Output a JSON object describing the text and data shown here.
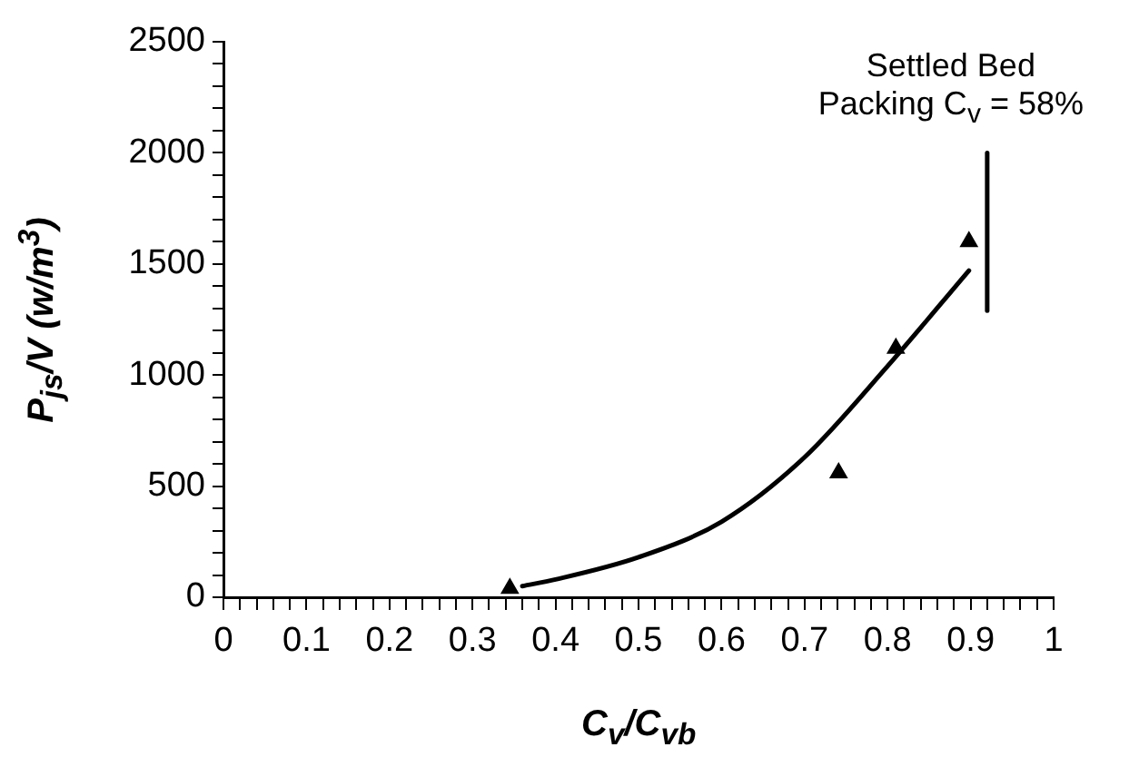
{
  "chart_data": {
    "type": "scatter",
    "xlabel": "C$_{v}$/C$_{vb}$",
    "ylabel": "P$_{js}$/V (w/m$^{3}$)",
    "xlim": [
      0,
      1
    ],
    "ylim": [
      0,
      2500
    ],
    "xticks": [
      0,
      {
        "value": 0.02,
        "label": null
      },
      {
        "value": 0.04,
        "label": null
      },
      {
        "value": 0.06,
        "label": null
      },
      {
        "value": 0.08,
        "label": null
      },
      {
        "value": 0.1,
        "label": "0.1"
      },
      {
        "value": 0.12,
        "label": null
      },
      {
        "value": 0.14,
        "label": null
      },
      {
        "value": 0.16,
        "label": null
      },
      {
        "value": 0.18,
        "label": null
      },
      {
        "value": 0.2,
        "label": "0.2"
      },
      {
        "value": 0.22,
        "label": null
      },
      {
        "value": 0.24,
        "label": null
      },
      {
        "value": 0.26,
        "label": null
      },
      {
        "value": 0.28,
        "label": null
      },
      {
        "value": 0.3,
        "label": "0.3"
      },
      {
        "value": 0.32,
        "label": null
      },
      {
        "value": 0.34,
        "label": null
      },
      {
        "value": 0.36,
        "label": null
      },
      {
        "value": 0.38,
        "label": null
      },
      {
        "value": 0.4,
        "label": "0.4"
      },
      {
        "value": 0.42,
        "label": null
      },
      {
        "value": 0.44,
        "label": null
      },
      {
        "value": 0.46,
        "label": null
      },
      {
        "value": 0.48,
        "label": null
      },
      {
        "value": 0.5,
        "label": "0.5"
      },
      {
        "value": 0.52,
        "label": null
      },
      {
        "value": 0.54,
        "label": null
      },
      {
        "value": 0.56,
        "label": null
      },
      {
        "value": 0.58,
        "label": null
      },
      {
        "value": 0.6,
        "label": "0.6"
      },
      {
        "value": 0.62,
        "label": null
      },
      {
        "value": 0.64,
        "label": null
      },
      {
        "value": 0.66,
        "label": null
      },
      {
        "value": 0.68,
        "label": null
      },
      {
        "value": 0.7,
        "label": "0.7"
      },
      {
        "value": 0.72,
        "label": null
      },
      {
        "value": 0.74,
        "label": null
      },
      {
        "value": 0.76,
        "label": null
      },
      {
        "value": 0.78,
        "label": null
      },
      {
        "value": 0.8,
        "label": "0.8"
      },
      {
        "value": 0.82,
        "label": null
      },
      {
        "value": 0.84,
        "label": null
      },
      {
        "value": 0.86,
        "label": null
      },
      {
        "value": 0.88,
        "label": null
      },
      {
        "value": 0.9,
        "label": "0.9"
      },
      {
        "value": 0.92,
        "label": null
      },
      {
        "value": 0.94,
        "label": null
      },
      {
        "value": 0.96,
        "label": null
      },
      {
        "value": 0.98,
        "label": null
      },
      1
    ],
    "yticks": [
      0,
      {
        "value": 100,
        "label": null
      },
      {
        "value": 200,
        "label": null
      },
      {
        "value": 300,
        "label": null
      },
      {
        "value": 400,
        "label": null
      },
      500,
      {
        "value": 600,
        "label": null
      },
      {
        "value": 700,
        "label": null
      },
      {
        "value": 800,
        "label": null
      },
      {
        "value": 900,
        "label": null
      },
      1000,
      {
        "value": 1100,
        "label": null
      },
      {
        "value": 1200,
        "label": null
      },
      {
        "value": 1300,
        "label": null
      },
      {
        "value": 1400,
        "label": null
      },
      1500,
      {
        "value": 1600,
        "label": null
      },
      {
        "value": 1700,
        "label": null
      },
      {
        "value": 1800,
        "label": null
      },
      {
        "value": 1900,
        "label": null
      },
      2000,
      {
        "value": 2100,
        "label": null
      },
      {
        "value": 2200,
        "label": null
      },
      {
        "value": 2300,
        "label": null
      },
      {
        "value": 2400,
        "label": null
      },
      2500
    ],
    "grid": false,
    "legend": false,
    "series": [
      {
        "color": "#000000",
        "marker": "triangle",
        "x": [
          0.345,
          0.741,
          0.81,
          0.898
        ],
        "values": [
          40,
          560,
          1120,
          1600
        ]
      },
      {
        "type": "line",
        "color": "#000000",
        "marker": "none",
        "line_style": "solid",
        "x": [
          0.36,
          0.4,
          0.5,
          0.6,
          0.7,
          0.8,
          0.898
        ],
        "values": [
          50,
          80,
          180,
          340,
          630,
          1040,
          1470
        ]
      },
      {
        "type": "line",
        "color": "#000000",
        "marker": "none",
        "line_style": "solid",
        "x": [
          0.92,
          0.92
        ],
        "values": [
          1290,
          2000
        ]
      }
    ],
    "annotations": [
      {
        "text": "Settled Bed Packing C$_{v}$ = 58%",
        "x": 0.92,
        "y": 2000
      }
    ]
  }
}
